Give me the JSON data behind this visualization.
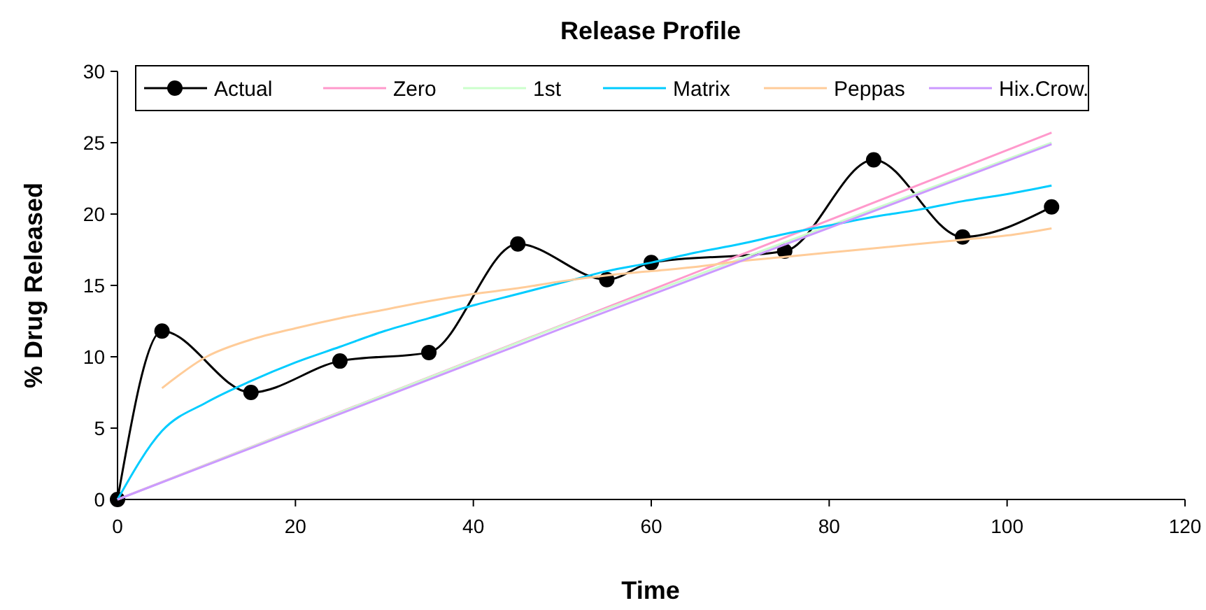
{
  "chart_data": {
    "type": "line",
    "title": "Release Profile",
    "xlabel": "Time",
    "ylabel": "% Drug Released",
    "xlim": [
      0,
      120
    ],
    "xticks": [
      0,
      20,
      40,
      60,
      80,
      100,
      120
    ],
    "ylim": [
      0,
      30
    ],
    "yticks": [
      0,
      5,
      10,
      15,
      20,
      25,
      30
    ],
    "grid": false,
    "legend": "top left",
    "series": [
      {
        "name": "Actual",
        "color": "#000000",
        "marker": "circle",
        "x": [
          0,
          5,
          15,
          25,
          35,
          45,
          55,
          60,
          75,
          85,
          95,
          105
        ],
        "values": [
          0,
          11.8,
          7.5,
          9.7,
          10.3,
          17.9,
          15.4,
          16.6,
          17.4,
          23.8,
          18.4,
          20.5
        ]
      },
      {
        "name": "Zero",
        "color": "#ff99cc",
        "marker": "none",
        "x": [
          0,
          105
        ],
        "values": [
          0,
          25.7
        ]
      },
      {
        "name": "1st",
        "color": "#ccffcc",
        "marker": "none",
        "x": [
          0,
          50,
          105
        ],
        "values": [
          0,
          12.2,
          25.0
        ]
      },
      {
        "name": "Matrix",
        "color": "#00ccff",
        "marker": "none",
        "x": [
          0,
          5,
          10,
          15,
          20,
          25,
          30,
          35,
          40,
          45,
          50,
          55,
          60,
          65,
          70,
          75,
          80,
          85,
          90,
          95,
          100,
          105
        ],
        "values": [
          0,
          4.8,
          6.8,
          8.3,
          9.6,
          10.7,
          11.8,
          12.7,
          13.6,
          14.4,
          15.2,
          16,
          16.6,
          17.3,
          17.9,
          18.6,
          19.2,
          19.8,
          20.3,
          20.9,
          21.4,
          22
        ]
      },
      {
        "name": "Peppas",
        "color": "#ffcc99",
        "marker": "none",
        "x": [
          5,
          10,
          15,
          20,
          25,
          30,
          35,
          40,
          45,
          50,
          55,
          60,
          65,
          70,
          75,
          80,
          85,
          90,
          95,
          100,
          105
        ],
        "values": [
          7.8,
          10,
          11.2,
          12,
          12.7,
          13.3,
          13.9,
          14.4,
          14.8,
          15.3,
          15.7,
          16,
          16.3,
          16.7,
          17,
          17.3,
          17.6,
          17.9,
          18.2,
          18.5,
          19
        ]
      },
      {
        "name": "Hix.Crow.",
        "color": "#cc99ff",
        "marker": "none",
        "x": [
          0,
          50,
          105
        ],
        "values": [
          0,
          12,
          24.9
        ]
      }
    ]
  }
}
